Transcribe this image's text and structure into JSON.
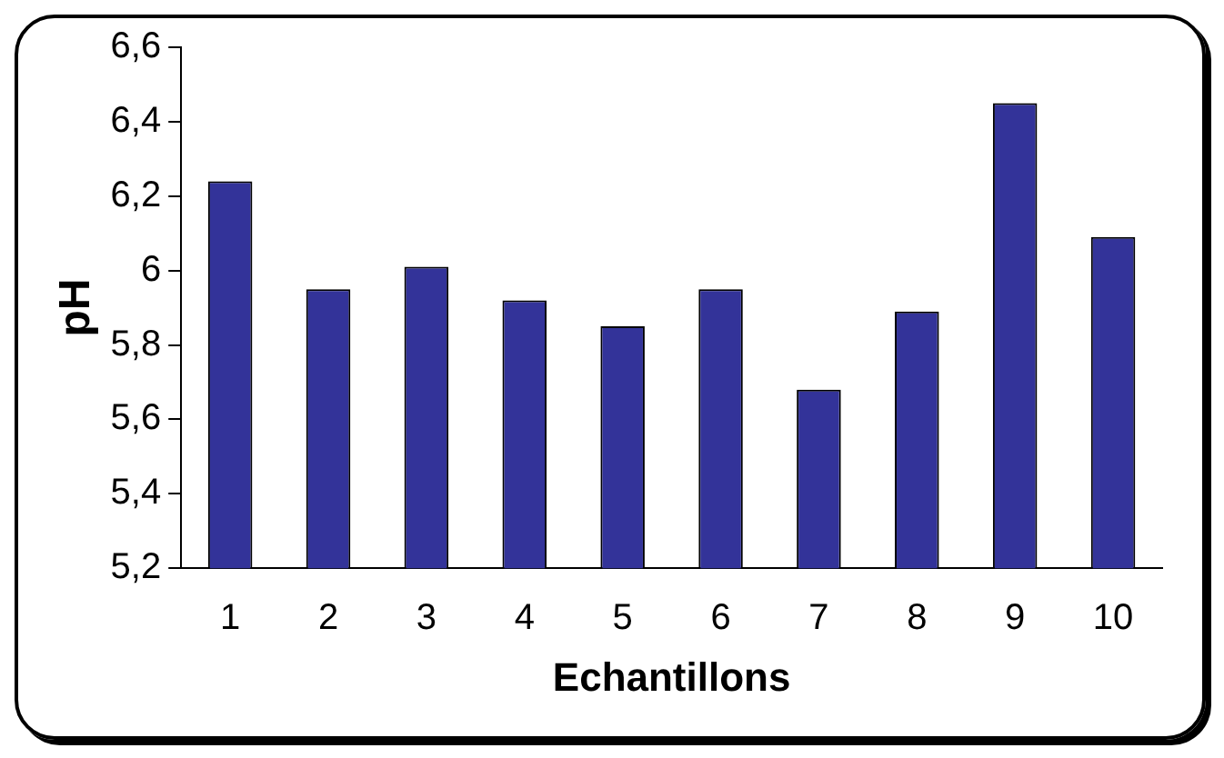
{
  "chart_data": {
    "type": "bar",
    "xlabel": "Echantillons",
    "ylabel": "pH",
    "categories": [
      "1",
      "2",
      "3",
      "4",
      "5",
      "6",
      "7",
      "8",
      "9",
      "10"
    ],
    "values": [
      6.24,
      5.95,
      6.01,
      5.92,
      5.85,
      5.95,
      5.68,
      5.89,
      6.45,
      6.09
    ],
    "color": "#333399",
    "ylim": [
      5.2,
      6.6
    ],
    "yticks": [
      {
        "value": 5.2,
        "label": "5,2"
      },
      {
        "value": 5.4,
        "label": "5,4"
      },
      {
        "value": 5.6,
        "label": "5,6"
      },
      {
        "value": 5.8,
        "label": "5,8"
      },
      {
        "value": 6,
        "label": "6"
      },
      {
        "value": 6.2,
        "label": "6,2"
      },
      {
        "value": 6.4,
        "label": "6,4"
      },
      {
        "value": 6.6,
        "label": "6,6"
      }
    ],
    "grid": false,
    "legend": false
  }
}
